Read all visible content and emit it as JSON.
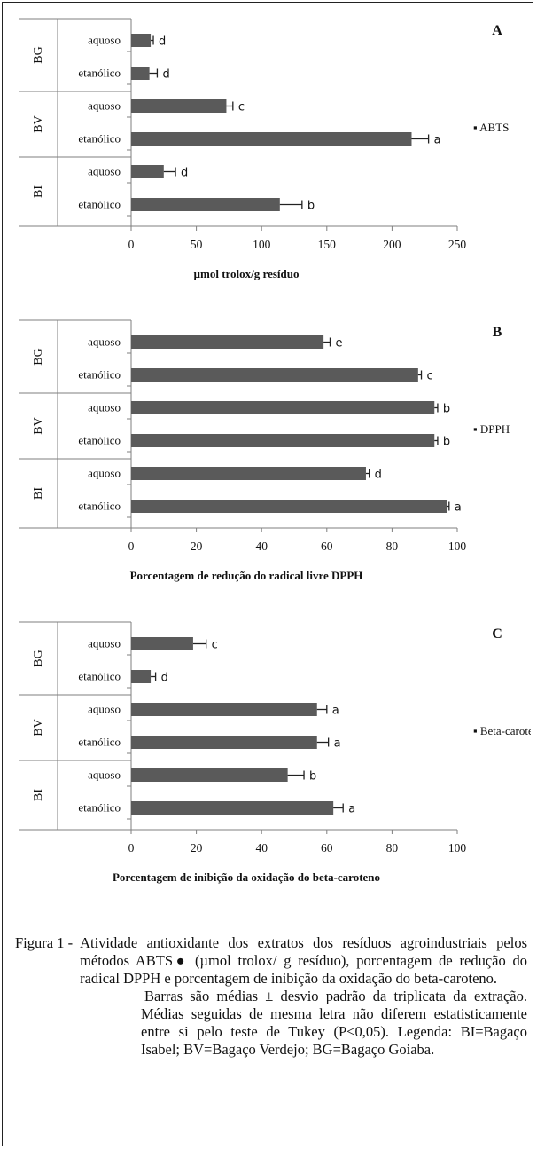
{
  "chart_data": [
    {
      "type": "bar",
      "orientation": "horizontal",
      "panel_letter": "A",
      "groups": [
        {
          "name": "BG",
          "categories": [
            "aquoso",
            "etanólico"
          ]
        },
        {
          "name": "BV",
          "categories": [
            "aquoso",
            "etanólico"
          ]
        },
        {
          "name": "BI",
          "categories": [
            "aquoso",
            "etanólico"
          ]
        }
      ],
      "series": [
        {
          "name": "ABTS",
          "legend_label": "▪ ABTS",
          "values": [
            15,
            14,
            73,
            215,
            25,
            114
          ],
          "errors": [
            2,
            6,
            5,
            13,
            9,
            17
          ],
          "letters": [
            "d",
            "d",
            "c",
            "a",
            "d",
            "b"
          ]
        }
      ],
      "xlabel": "µmol trolox/g resíduo",
      "xlim": [
        0,
        250
      ],
      "xticks": [
        0,
        50,
        100,
        150,
        200,
        250
      ],
      "grid": false,
      "legend_position": "right"
    },
    {
      "type": "bar",
      "orientation": "horizontal",
      "panel_letter": "B",
      "groups": [
        {
          "name": "BG",
          "categories": [
            "aquoso",
            "etanólico"
          ]
        },
        {
          "name": "BV",
          "categories": [
            "aquoso",
            "etanólico"
          ]
        },
        {
          "name": "BI",
          "categories": [
            "aquoso",
            "etanólico"
          ]
        }
      ],
      "series": [
        {
          "name": "DPPH",
          "legend_label": "▪ DPPH",
          "values": [
            59,
            88,
            93,
            93,
            72,
            97
          ],
          "errors": [
            2,
            1,
            1,
            1,
            1,
            0.5
          ],
          "letters": [
            "e",
            "c",
            "b",
            "b",
            "d",
            "a"
          ]
        }
      ],
      "xlabel": "Porcentagem de redução do radical livre DPPH",
      "xlim": [
        0,
        100
      ],
      "xticks": [
        0,
        20,
        40,
        60,
        80,
        100
      ],
      "grid": false,
      "legend_position": "right"
    },
    {
      "type": "bar",
      "orientation": "horizontal",
      "panel_letter": "C",
      "groups": [
        {
          "name": "BG",
          "categories": [
            "aquoso",
            "etanólico"
          ]
        },
        {
          "name": "BV",
          "categories": [
            "aquoso",
            "etanólico"
          ]
        },
        {
          "name": "BI",
          "categories": [
            "aquoso",
            "etanólico"
          ]
        }
      ],
      "series": [
        {
          "name": "Beta-caroteno",
          "legend_label": "▪ Beta-caroteno",
          "values": [
            19,
            6,
            57,
            57,
            48,
            62
          ],
          "errors": [
            4,
            1.5,
            3,
            3.5,
            5,
            3
          ],
          "letters": [
            "c",
            "d",
            "a",
            "a",
            "b",
            "a"
          ]
        }
      ],
      "xlabel": "Porcentagem de inibição da oxidação do beta-caroteno",
      "xlim": [
        0,
        100
      ],
      "xticks": [
        0,
        20,
        40,
        60,
        80,
        100
      ],
      "grid": false,
      "legend_position": "right"
    }
  ],
  "caption": {
    "label": "Figura 1 -",
    "text": "Atividade antioxidante dos extratos dos resíduos agroindustriais pelos métodos ABTS● (µmol trolox/ g resíduo), porcentagem de redução do radical DPPH e porcentagem de inibição da oxidação do beta-caroteno.",
    "note": "Barras são médias ± desvio padrão da triplicata da extração. Médias seguidas de mesma letra não diferem estatisticamente entre si pelo teste de Tukey (P<0,05). Legenda: BI=Bagaço Isabel; BV=Bagaço Verdejo; BG=Bagaço Goiaba."
  },
  "colors": {
    "bar": "#5a5a5a",
    "axis": "#7f7f7f",
    "text": "#111111"
  }
}
